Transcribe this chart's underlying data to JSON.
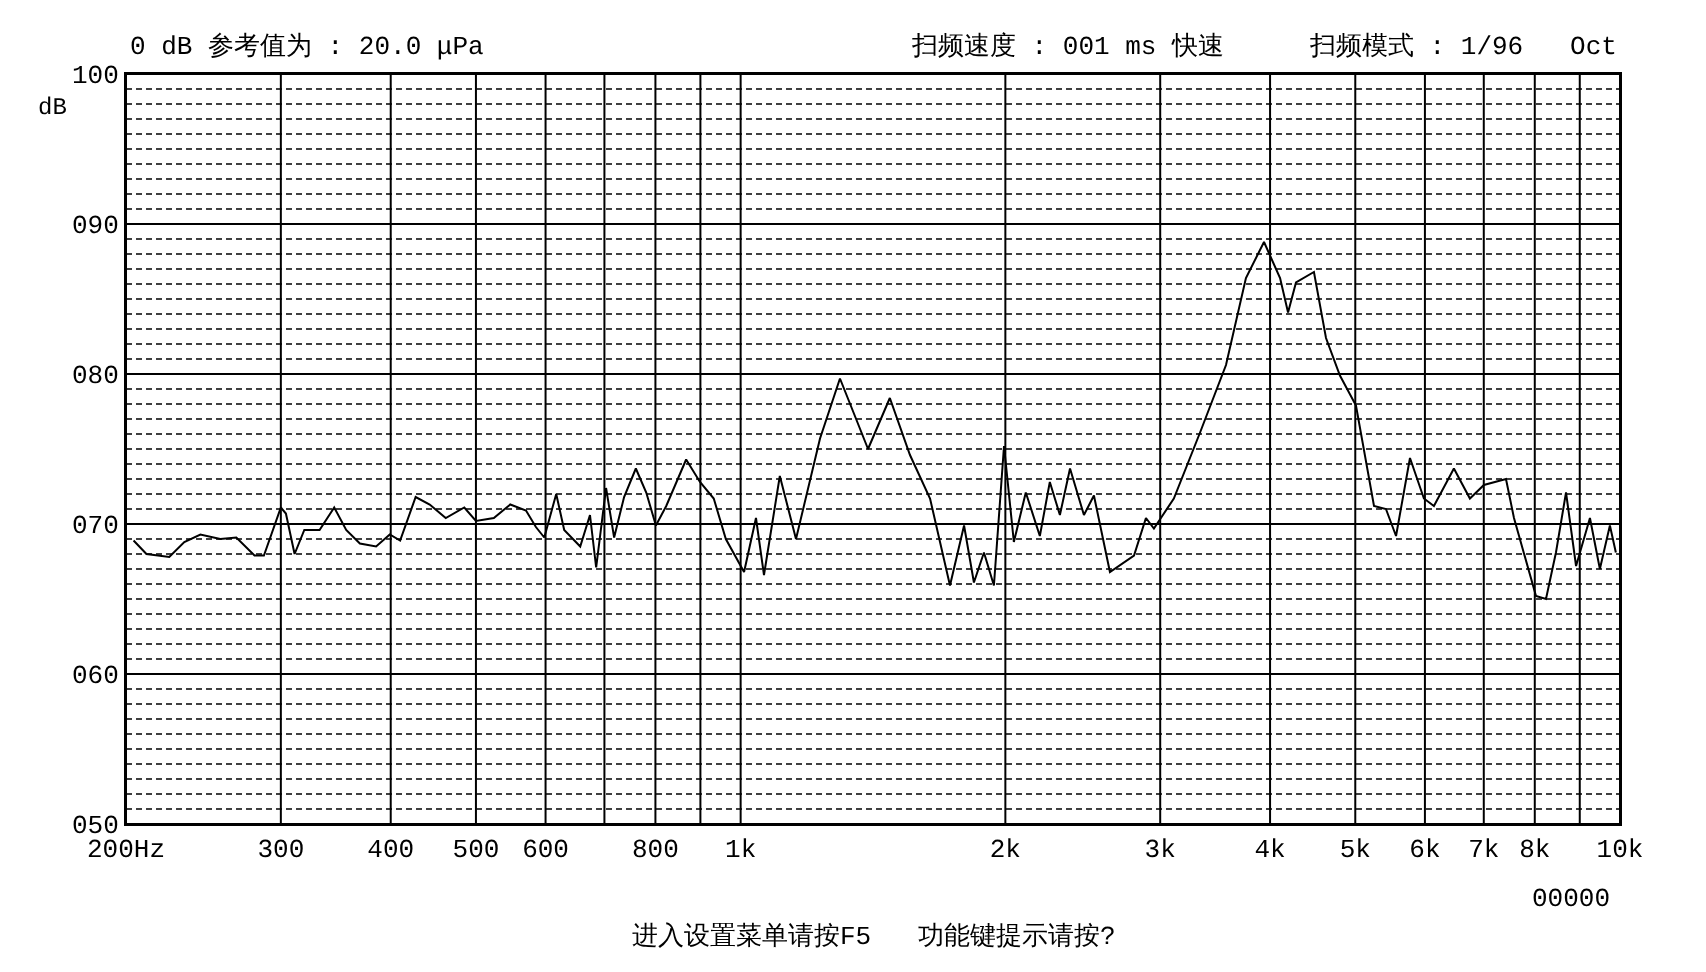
{
  "chart_data": {
    "type": "line",
    "ylabel": "dB",
    "annotations": [
      "0 dB 参考值为 : 20.0 μPa",
      "扫频速度 : 001 ms 快速",
      "扫频模式 : 1/96   Oct",
      "进入设置菜单请按F5   功能键提示请按?",
      "00000"
    ],
    "x": [
      204,
      211,
      224,
      233,
      243,
      256,
      267,
      280,
      287,
      300,
      304,
      311,
      319,
      332,
      345,
      356,
      369,
      385,
      399,
      410,
      427,
      443,
      462,
      485,
      500,
      524,
      547,
      570,
      585,
      598,
      617,
      630,
      657,
      674,
      685,
      703,
      718,
      737,
      760,
      781,
      801,
      823,
      867,
      899,
      932,
      962,
      1009,
      1041,
      1063,
      1108,
      1156,
      1231,
      1297,
      1353,
      1396,
      1478,
      1558,
      1642,
      1730,
      1795,
      1842,
      1891,
      1941,
      1993,
      2045,
      2110,
      2189,
      2247,
      2307,
      2369,
      2457,
      2522,
      2630,
      2801,
      2890,
      2951,
      3109,
      3330,
      3564,
      3755,
      3937,
      4106,
      4193,
      4281,
      4487,
      4631,
      4803,
      5009,
      5251,
      5418,
      5563,
      5770,
      5984,
      6143,
      6473,
      6750,
      7002,
      7419,
      7576,
      8025,
      8238,
      8456,
      8682,
      8913,
      9243,
      9487,
      9739,
      9892
    ],
    "series": [
      {
        "color": "#000000",
        "values": [
          68.9,
          68.0,
          67.8,
          68.8,
          69.3,
          69.0,
          69.1,
          67.9,
          67.9,
          71.1,
          70.7,
          68.0,
          69.6,
          69.6,
          71.1,
          69.6,
          68.7,
          68.5,
          69.3,
          68.9,
          71.8,
          71.3,
          70.4,
          71.1,
          70.2,
          70.4,
          71.3,
          70.9,
          69.8,
          69.1,
          72.0,
          69.6,
          68.5,
          70.6,
          67.1,
          72.4,
          69.1,
          71.8,
          73.7,
          72.1,
          69.9,
          71.2,
          74.3,
          72.8,
          71.7,
          69.0,
          66.8,
          70.4,
          66.6,
          73.2,
          69.0,
          75.7,
          79.7,
          77.0,
          75.0,
          78.4,
          74.6,
          71.7,
          65.9,
          69.9,
          66.1,
          68.1,
          65.9,
          75.2,
          68.8,
          72.1,
          69.2,
          72.8,
          70.6,
          73.7,
          70.6,
          71.9,
          66.8,
          67.9,
          70.4,
          69.7,
          71.7,
          76.1,
          80.6,
          86.4,
          88.8,
          86.4,
          84.1,
          86.1,
          86.8,
          82.4,
          79.9,
          77.9,
          71.2,
          71.0,
          69.2,
          74.4,
          71.7,
          71.2,
          73.7,
          71.7,
          72.6,
          73.0,
          70.4,
          65.2,
          65.0,
          68.1,
          72.1,
          67.2,
          70.4,
          67.0,
          69.9,
          68.1
        ]
      }
    ],
    "log": "x",
    "xlim": [
      200,
      10000
    ],
    "xticks": [
      {
        "value": 200,
        "label": "200Hz"
      },
      300,
      400,
      500,
      600,
      {
        "value": 700,
        "label": null
      },
      800,
      {
        "value": 900,
        "label": null
      },
      {
        "value": 1000,
        "label": "1k"
      },
      {
        "value": 2000,
        "label": "2k"
      },
      {
        "value": 3000,
        "label": "3k"
      },
      {
        "value": 4000,
        "label": "4k"
      },
      {
        "value": 5000,
        "label": "5k"
      },
      {
        "value": 6000,
        "label": "6k"
      },
      {
        "value": 7000,
        "label": "7k"
      },
      {
        "value": 8000,
        "label": "8k"
      },
      {
        "value": 9000,
        "label": null
      },
      {
        "value": 10000,
        "label": "10k"
      }
    ],
    "ylim": [
      50,
      100
    ],
    "yticks": [
      {
        "value": 50,
        "label": "050"
      },
      {
        "value": 51,
        "label": null
      },
      {
        "value": 52,
        "label": null
      },
      {
        "value": 53,
        "label": null
      },
      {
        "value": 54,
        "label": null
      },
      {
        "value": 55,
        "label": null
      },
      {
        "value": 56,
        "label": null
      },
      {
        "value": 57,
        "label": null
      },
      {
        "value": 58,
        "label": null
      },
      {
        "value": 59,
        "label": null
      },
      {
        "value": 60,
        "label": "060"
      },
      {
        "value": 61,
        "label": null
      },
      {
        "value": 62,
        "label": null
      },
      {
        "value": 63,
        "label": null
      },
      {
        "value": 64,
        "label": null
      },
      {
        "value": 65,
        "label": null
      },
      {
        "value": 66,
        "label": null
      },
      {
        "value": 67,
        "label": null
      },
      {
        "value": 68,
        "label": null
      },
      {
        "value": 69,
        "label": null
      },
      {
        "value": 70,
        "label": "070"
      },
      {
        "value": 71,
        "label": null
      },
      {
        "value": 72,
        "label": null
      },
      {
        "value": 73,
        "label": null
      },
      {
        "value": 74,
        "label": null
      },
      {
        "value": 75,
        "label": null
      },
      {
        "value": 76,
        "label": null
      },
      {
        "value": 77,
        "label": null
      },
      {
        "value": 78,
        "label": null
      },
      {
        "value": 79,
        "label": null
      },
      {
        "value": 80,
        "label": "080"
      },
      {
        "value": 81,
        "label": null
      },
      {
        "value": 82,
        "label": null
      },
      {
        "value": 83,
        "label": null
      },
      {
        "value": 84,
        "label": null
      },
      {
        "value": 85,
        "label": null
      },
      {
        "value": 86,
        "label": null
      },
      {
        "value": 87,
        "label": null
      },
      {
        "value": 88,
        "label": null
      },
      {
        "value": 89,
        "label": null
      },
      {
        "value": 90,
        "label": "090"
      },
      {
        "value": 91,
        "label": null
      },
      {
        "value": 92,
        "label": null
      },
      {
        "value": 93,
        "label": null
      },
      {
        "value": 94,
        "label": null
      },
      {
        "value": 95,
        "label": null
      },
      {
        "value": 96,
        "label": null
      },
      {
        "value": 97,
        "label": null
      },
      {
        "value": 98,
        "label": null
      },
      {
        "value": 99,
        "label": null
      },
      {
        "value": 100,
        "label": "100"
      }
    ],
    "grid": true,
    "line_style": "solid",
    "marker": "none"
  }
}
